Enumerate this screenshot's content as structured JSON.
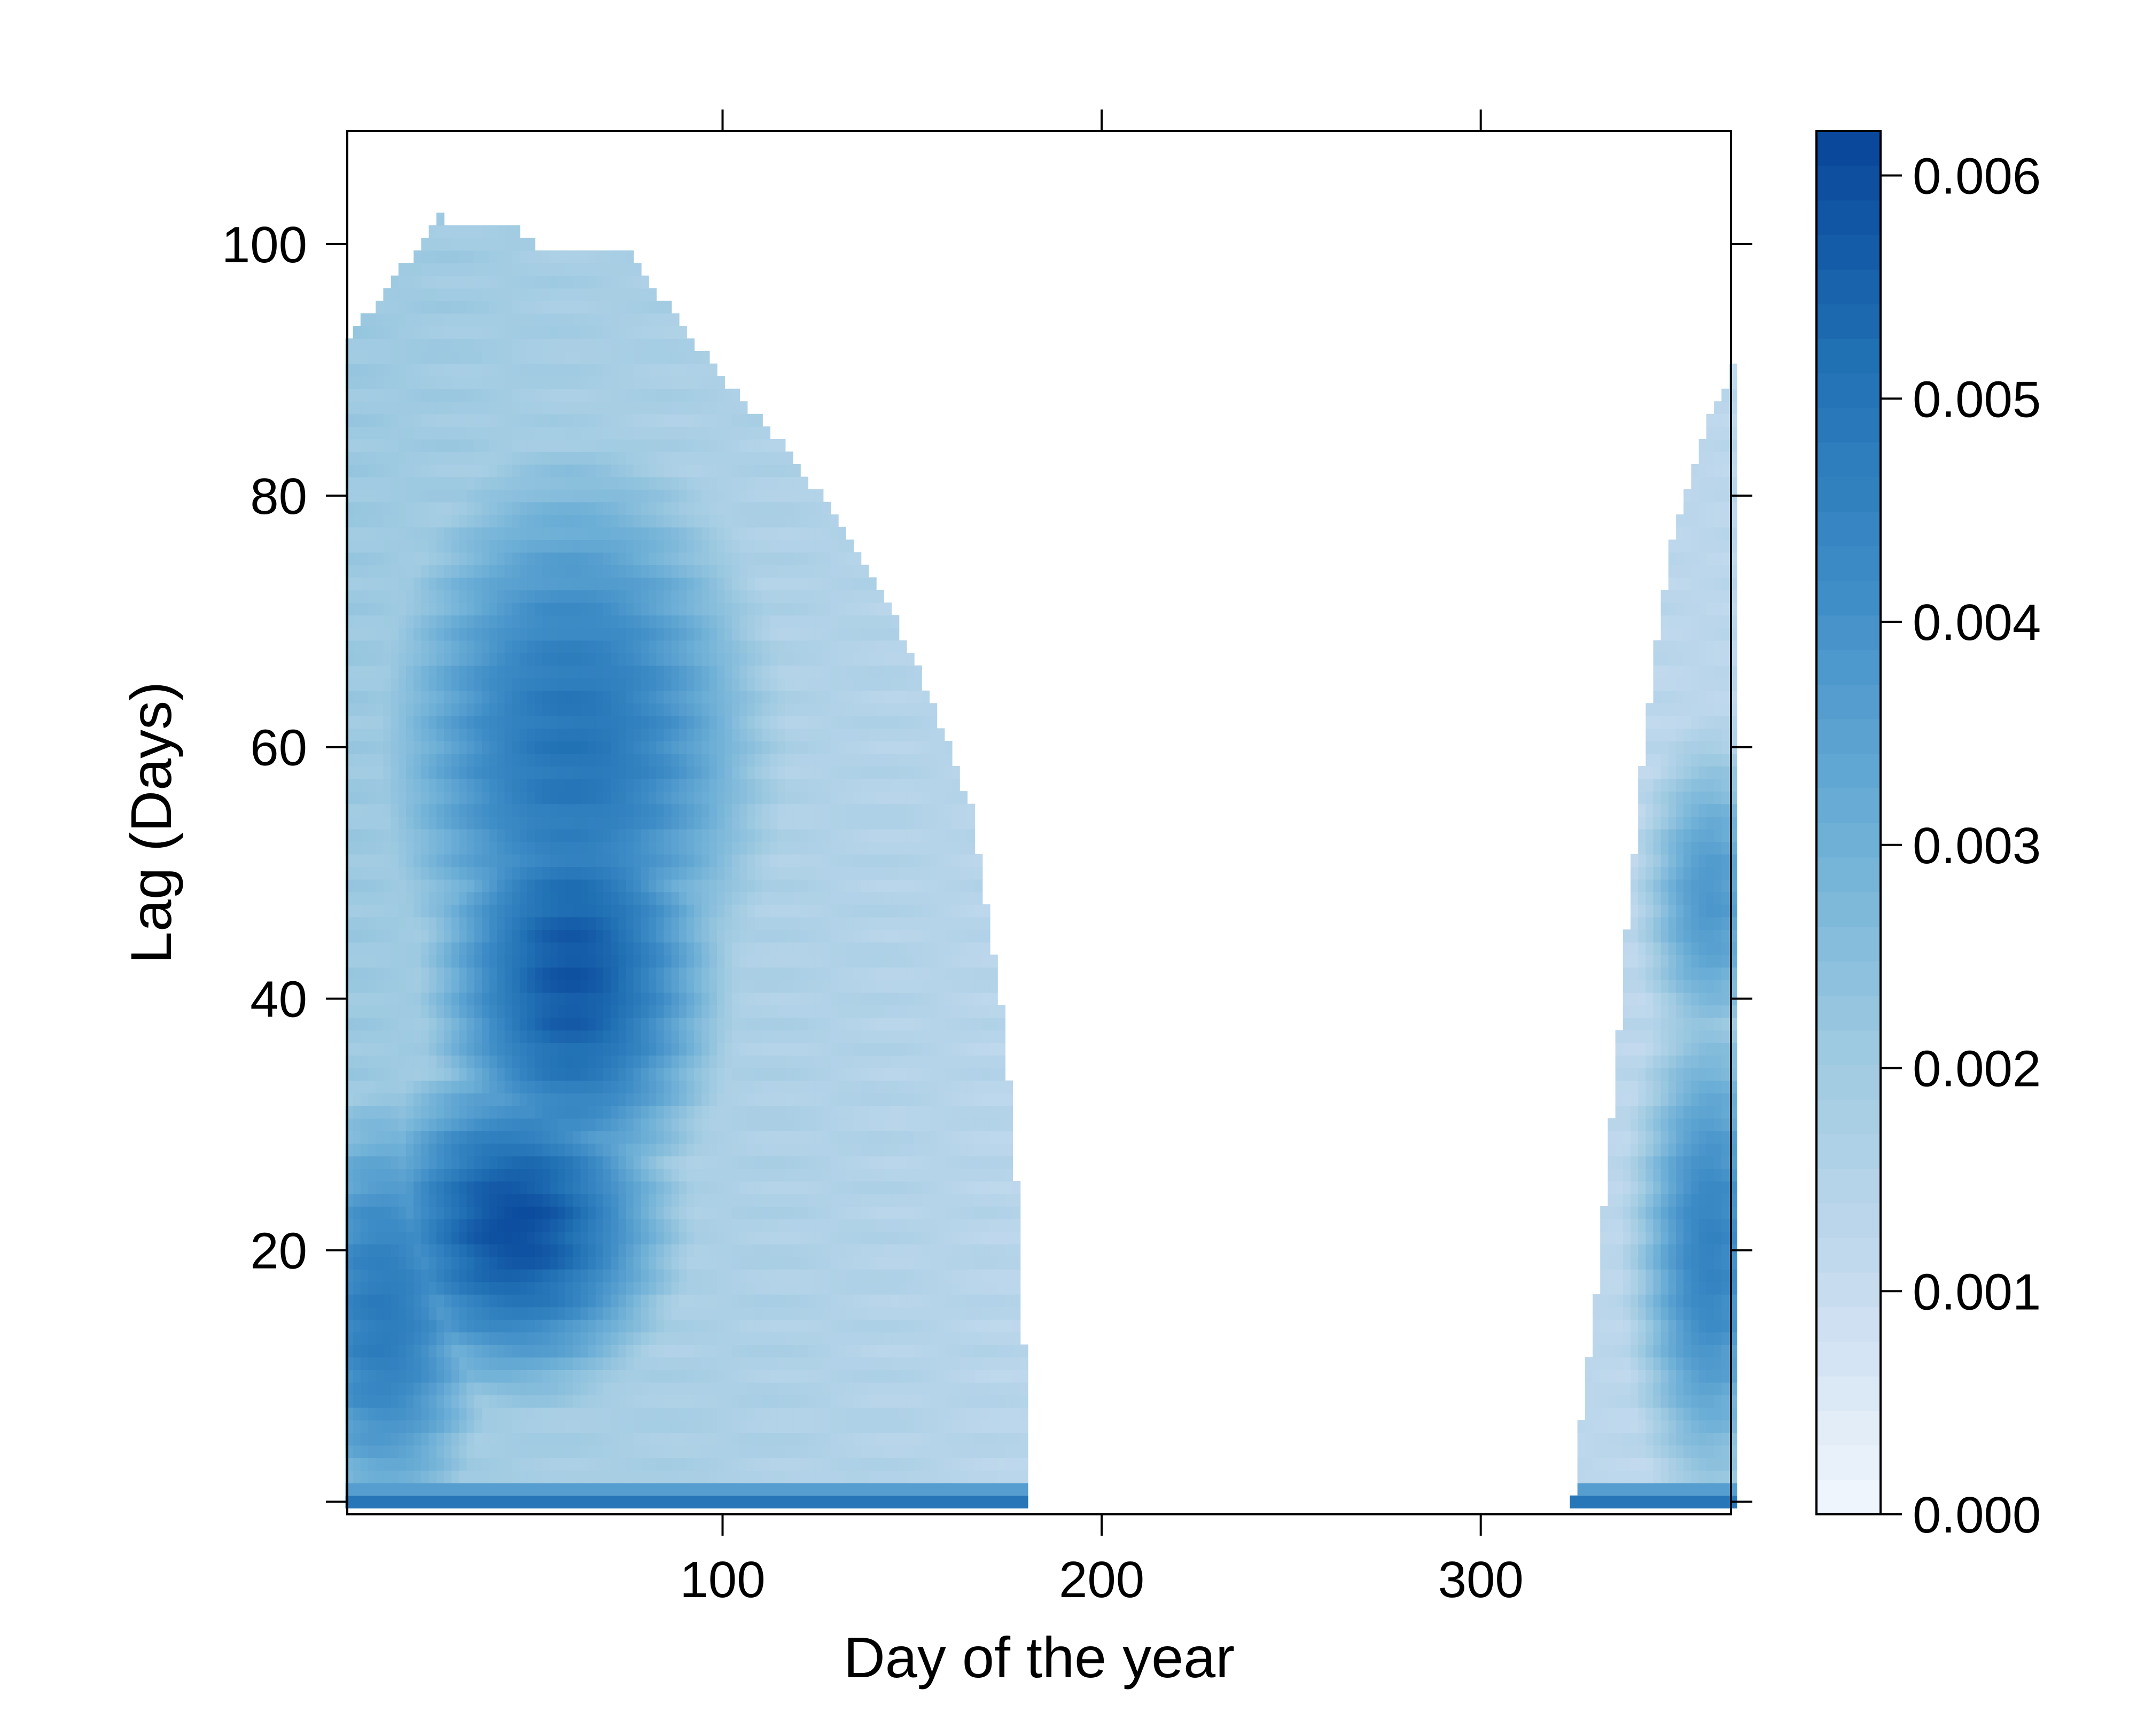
{
  "chart_data": {
    "type": "heatmap",
    "title": "",
    "xlabel": "Day of the year",
    "ylabel": "Lag (Days)",
    "xlim": [
      1,
      366
    ],
    "ylim": [
      -1,
      109
    ],
    "x_ticks": [
      {
        "value": 100,
        "label": "100"
      },
      {
        "value": 200,
        "label": "200"
      },
      {
        "value": 300,
        "label": "300"
      }
    ],
    "y_ticks": [
      {
        "value": 0,
        "label": ""
      },
      {
        "value": 20,
        "label": "20"
      },
      {
        "value": 40,
        "label": "40"
      },
      {
        "value": 60,
        "label": "60"
      },
      {
        "value": 80,
        "label": "80"
      },
      {
        "value": 100,
        "label": "100"
      }
    ],
    "colorbar": {
      "min": 0,
      "max": 0.0062,
      "colors": [
        "#f2f7fd",
        "#c6dbef",
        "#9ecae1",
        "#6baed6",
        "#3f8dc7",
        "#2171b5",
        "#08459a"
      ],
      "ticks": [
        {
          "value": 0.0,
          "label": "0.000"
        },
        {
          "value": 0.001,
          "label": "0.001"
        },
        {
          "value": 0.002,
          "label": "0.002"
        },
        {
          "value": 0.003,
          "label": "0.003"
        },
        {
          "value": 0.004,
          "label": "0.004"
        },
        {
          "value": 0.005,
          "label": "0.005"
        },
        {
          "value": 0.006,
          "label": "0.006"
        }
      ]
    },
    "regions": [
      {
        "name_hint": "early-year",
        "day_range": [
          1,
          180
        ],
        "max_lag_boundary": [
          [
            1,
            92
          ],
          [
            5,
            94
          ],
          [
            10,
            96
          ],
          [
            15,
            98
          ],
          [
            20,
            100
          ],
          [
            25,
            102
          ],
          [
            30,
            101
          ],
          [
            45,
            101
          ],
          [
            50,
            100
          ],
          [
            55,
            99
          ],
          [
            75,
            99
          ],
          [
            80,
            97
          ],
          [
            90,
            93
          ],
          [
            100,
            89
          ],
          [
            110,
            86
          ],
          [
            120,
            82
          ],
          [
            130,
            78
          ],
          [
            140,
            73
          ],
          [
            150,
            67
          ],
          [
            158,
            61
          ],
          [
            165,
            55
          ],
          [
            170,
            46
          ],
          [
            174,
            37
          ],
          [
            177,
            25
          ],
          [
            179,
            12
          ],
          [
            180,
            0
          ]
        ]
      },
      {
        "name_hint": "late-year",
        "day_range": [
          324,
          366
        ],
        "max_lag_boundary": [
          [
            324,
            0
          ],
          [
            326,
            6
          ],
          [
            330,
            16
          ],
          [
            334,
            30
          ],
          [
            338,
            45
          ],
          [
            342,
            58
          ],
          [
            346,
            68
          ],
          [
            350,
            76
          ],
          [
            355,
            82
          ],
          [
            360,
            86
          ],
          [
            366,
            90
          ]
        ]
      }
    ],
    "hotspots": [
      {
        "day": 45,
        "lag": 22,
        "value": 0.006,
        "spread_day": 30,
        "spread_lag": 10
      },
      {
        "day": 60,
        "lag": 42,
        "value": 0.0058,
        "spread_day": 28,
        "spread_lag": 14
      },
      {
        "day": 60,
        "lag": 60,
        "value": 0.005,
        "spread_day": 38,
        "spread_lag": 18
      },
      {
        "day": 10,
        "lag": 15,
        "value": 0.0048,
        "spread_day": 22,
        "spread_lag": 14
      },
      {
        "day": 360,
        "lag": 20,
        "value": 0.0045,
        "spread_day": 15,
        "spread_lag": 15
      },
      {
        "day": 360,
        "lag": 48,
        "value": 0.0038,
        "spread_day": 14,
        "spread_lag": 10
      }
    ]
  }
}
